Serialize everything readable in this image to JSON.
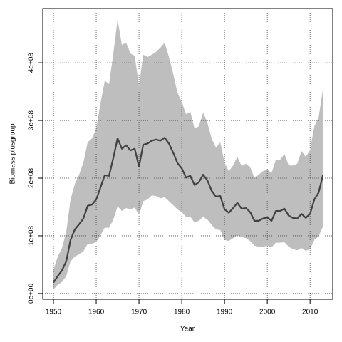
{
  "chart_data": {
    "type": "line",
    "x_label": "Year",
    "y_label": "Biomass plusgroup",
    "x": [
      1950,
      1951,
      1952,
      1953,
      1954,
      1955,
      1956,
      1957,
      1958,
      1959,
      1960,
      1961,
      1962,
      1963,
      1964,
      1965,
      1966,
      1967,
      1968,
      1969,
      1970,
      1971,
      1972,
      1973,
      1974,
      1975,
      1976,
      1977,
      1978,
      1979,
      1980,
      1981,
      1982,
      1983,
      1984,
      1985,
      1986,
      1987,
      1988,
      1989,
      1990,
      1991,
      1992,
      1993,
      1994,
      1995,
      1996,
      1997,
      1998,
      1999,
      2000,
      2001,
      2002,
      2003,
      2004,
      2005,
      2006,
      2007,
      2008,
      2009,
      2010,
      2011,
      2012,
      2013
    ],
    "series": [
      {
        "color": "#404040",
        "band_color": "#bebebe",
        "values": [
          19000000.0,
          30000000.0,
          40000000.0,
          56000000.0,
          93000000.0,
          111000000.0,
          120000000.0,
          130000000.0,
          152000000.0,
          154000000.0,
          163000000.0,
          184000000.0,
          205000000.0,
          204000000.0,
          235000000.0,
          269000000.0,
          251000000.0,
          257000000.0,
          248000000.0,
          251000000.0,
          220000000.0,
          258000000.0,
          260000000.0,
          265000000.0,
          267000000.0,
          265000000.0,
          270000000.0,
          260000000.0,
          244000000.0,
          226000000.0,
          217000000.0,
          201000000.0,
          204000000.0,
          188000000.0,
          193000000.0,
          206000000.0,
          196000000.0,
          178000000.0,
          168000000.0,
          169000000.0,
          146000000.0,
          140000000.0,
          148000000.0,
          157000000.0,
          147000000.0,
          148000000.0,
          141000000.0,
          126000000.0,
          126000000.0,
          130000000.0,
          132000000.0,
          126000000.0,
          143000000.0,
          143000000.0,
          147000000.0,
          135000000.0,
          131000000.0,
          130000000.0,
          138000000.0,
          131000000.0,
          138000000.0,
          163000000.0,
          175000000.0,
          205000000.0
        ],
        "upper": [
          40000000.0,
          64000000.0,
          79000000.0,
          107000000.0,
          163000000.0,
          190000000.0,
          206000000.0,
          227000000.0,
          262000000.0,
          269000000.0,
          286000000.0,
          330000000.0,
          369000000.0,
          363000000.0,
          416000000.0,
          475000000.0,
          431000000.0,
          435000000.0,
          416000000.0,
          412000000.0,
          360000000.0,
          414000000.0,
          410000000.0,
          414000000.0,
          419000000.0,
          426000000.0,
          435000000.0,
          410000000.0,
          381000000.0,
          348000000.0,
          332000000.0,
          311000000.0,
          315000000.0,
          286000000.0,
          290000000.0,
          314000000.0,
          296000000.0,
          268000000.0,
          253000000.0,
          262000000.0,
          227000000.0,
          212000000.0,
          222000000.0,
          237000000.0,
          221000000.0,
          225000000.0,
          219000000.0,
          200000000.0,
          206000000.0,
          212000000.0,
          215000000.0,
          209000000.0,
          232000000.0,
          232000000.0,
          242000000.0,
          222000000.0,
          222000000.0,
          225000000.0,
          247000000.0,
          237000000.0,
          249000000.0,
          290000000.0,
          305000000.0,
          354000000.0
        ],
        "lower": [
          7000000.0,
          15000000.0,
          20000000.0,
          30000000.0,
          56000000.0,
          64000000.0,
          68000000.0,
          73000000.0,
          86000000.0,
          86000000.0,
          89000000.0,
          101000000.0,
          114000000.0,
          114000000.0,
          128000000.0,
          151000000.0,
          143000000.0,
          148000000.0,
          146000000.0,
          149000000.0,
          136000000.0,
          160000000.0,
          163000000.0,
          170000000.0,
          169000000.0,
          165000000.0,
          167000000.0,
          160000000.0,
          153000000.0,
          146000000.0,
          141000000.0,
          133000000.0,
          133000000.0,
          123000000.0,
          126000000.0,
          133000000.0,
          128000000.0,
          119000000.0,
          111000000.0,
          110000000.0,
          93000000.0,
          91000000.0,
          96000000.0,
          101000000.0,
          98000000.0,
          96000000.0,
          91000000.0,
          83000000.0,
          81000000.0,
          81000000.0,
          83000000.0,
          80000000.0,
          88000000.0,
          88000000.0,
          89000000.0,
          81000000.0,
          77000000.0,
          75000000.0,
          79000000.0,
          74000000.0,
          77000000.0,
          93000000.0,
          99000000.0,
          116000000.0
        ]
      }
    ],
    "xlim": [
      1947.5,
      2015.3
    ],
    "xticks": [
      1950,
      1960,
      1970,
      1980,
      1990,
      2000,
      2010
    ],
    "ylim": [
      -10000000.0,
      494000000.0
    ],
    "yticks": [
      {
        "value": 0,
        "label": "0e+00"
      },
      {
        "value": 100000000,
        "label": "1e+08"
      },
      {
        "value": 200000000,
        "label": "2e+08"
      },
      {
        "value": 300000000,
        "label": "3e+08"
      },
      {
        "value": 400000000,
        "label": "4e+08"
      }
    ],
    "grid": true
  }
}
